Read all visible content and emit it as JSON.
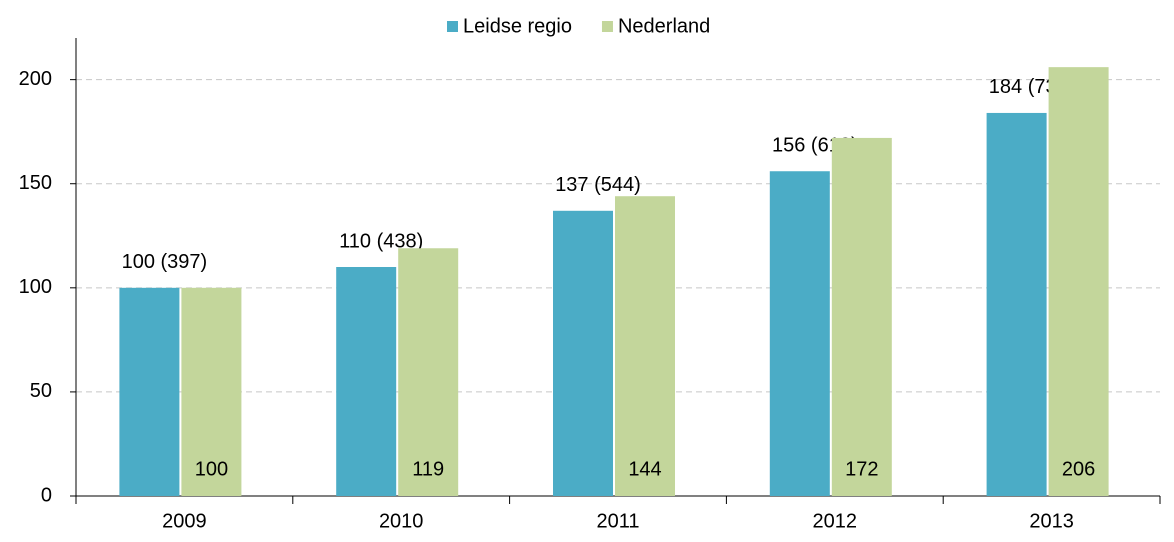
{
  "chart_data": {
    "type": "bar",
    "categories": [
      "2009",
      "2010",
      "2011",
      "2012",
      "2013"
    ],
    "series": [
      {
        "name": "Leidse regio",
        "color": "#4bacc6",
        "values": [
          100,
          110,
          137,
          156,
          184
        ],
        "value_labels": [
          "100 (397)",
          "110 (438)",
          "137 (544)",
          "156 (619)",
          "184 (731)"
        ]
      },
      {
        "name": "Nederland",
        "color": "#c3d69b",
        "values": [
          100,
          119,
          144,
          172,
          206
        ]
      }
    ],
    "ylim": [
      0,
      220
    ],
    "yticks": [
      0,
      50,
      100,
      150,
      200
    ],
    "grid": true,
    "legend": "top"
  }
}
